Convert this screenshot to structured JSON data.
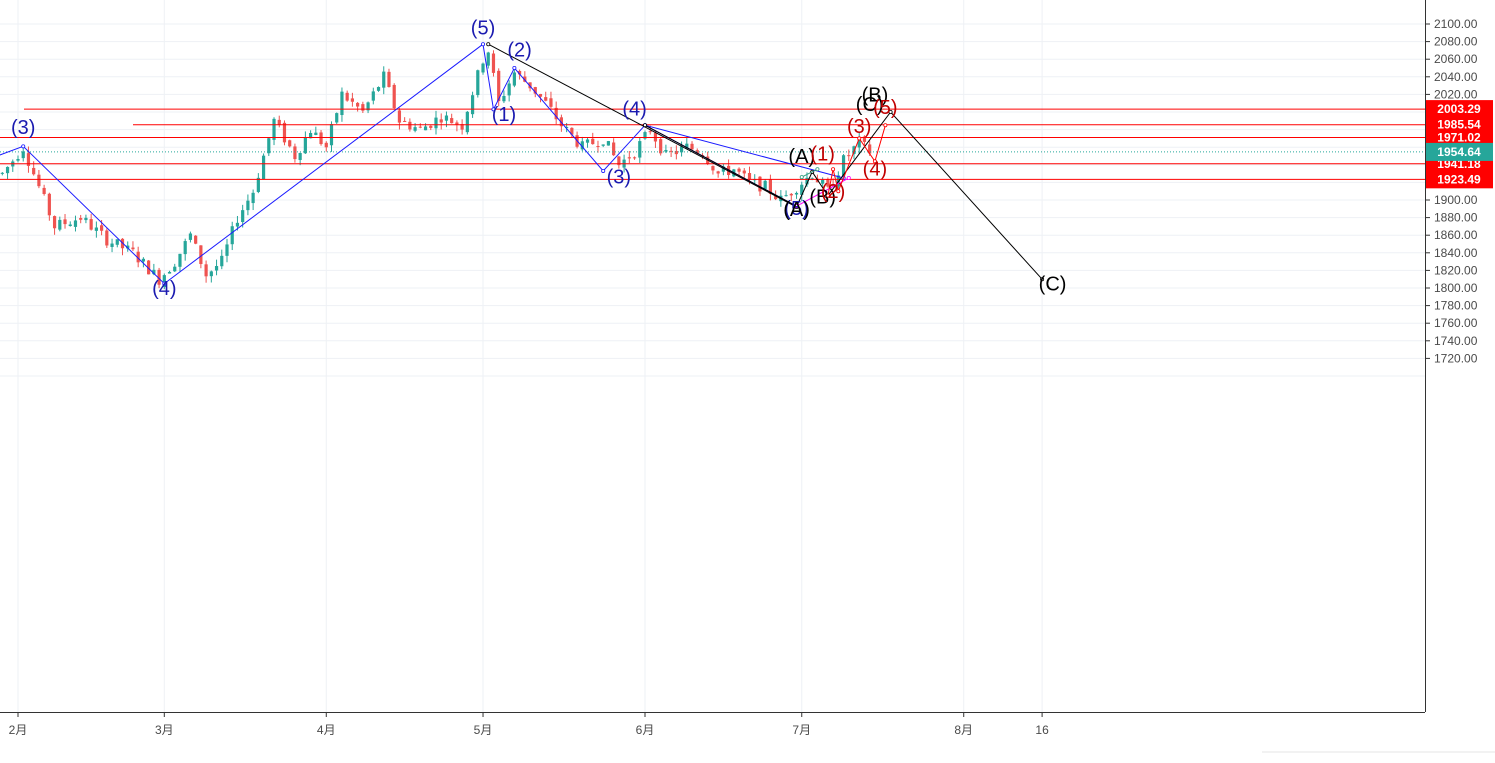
{
  "chart_data": {
    "type": "candlestick",
    "y_axis": {
      "ticks": [
        "2100.00",
        "2080.00",
        "2060.00",
        "2040.00",
        "2020.00",
        "1900.00",
        "1880.00",
        "1860.00",
        "1840.00",
        "1820.00",
        "1800.00",
        "1780.00",
        "1760.00",
        "1740.00",
        "1720.00"
      ],
      "tick_values": [
        2100,
        2080,
        2060,
        2040,
        2020,
        1900,
        1880,
        1860,
        1840,
        1820,
        1800,
        1780,
        1760,
        1740,
        1720
      ],
      "range": [
        1710,
        2112
      ],
      "position": "right"
    },
    "x_axis": {
      "ticks": [
        {
          "label": "2月",
          "t": 0
        },
        {
          "label": "3月",
          "t": 28
        },
        {
          "label": "4月",
          "t": 59
        },
        {
          "label": "5月",
          "t": 89
        },
        {
          "label": "6月",
          "t": 120
        },
        {
          "label": "7月",
          "t": 150
        },
        {
          "label": "8月",
          "t": 181
        },
        {
          "label": "16",
          "t": 196
        }
      ]
    },
    "grid": true,
    "candle_colors": {
      "up": "#26a69a",
      "down": "#ef5350"
    },
    "horizontal_levels": [
      {
        "price": 2003.29,
        "label": "2003.29",
        "color": "#ff0000"
      },
      {
        "price": 1985.54,
        "label": "1985.54",
        "color": "#ff0000"
      },
      {
        "price": 1971.02,
        "label": "1971.02",
        "color": "#ff0000"
      },
      {
        "price": 1941.18,
        "label": "1941.18",
        "color": "#ff0000"
      },
      {
        "price": 1923.49,
        "label": "1923.49",
        "color": "#ff0000"
      }
    ],
    "last_price": {
      "price": 1954.64,
      "label": "1954.64",
      "color": "#26a69a"
    },
    "price_path": [
      {
        "t": -3,
        "price": 1930
      },
      {
        "t": 1,
        "price": 1960
      },
      {
        "t": 4,
        "price": 1915
      },
      {
        "t": 7,
        "price": 1870
      },
      {
        "t": 12,
        "price": 1880
      },
      {
        "t": 17,
        "price": 1855
      },
      {
        "t": 22,
        "price": 1840
      },
      {
        "t": 27,
        "price": 1810
      },
      {
        "t": 30,
        "price": 1830
      },
      {
        "t": 33,
        "price": 1860
      },
      {
        "t": 36,
        "price": 1815
      },
      {
        "t": 39,
        "price": 1830
      },
      {
        "t": 42,
        "price": 1880
      },
      {
        "t": 45,
        "price": 1910
      },
      {
        "t": 49,
        "price": 1990
      },
      {
        "t": 53,
        "price": 1950
      },
      {
        "t": 56,
        "price": 1980
      },
      {
        "t": 59,
        "price": 1960
      },
      {
        "t": 62,
        "price": 2020
      },
      {
        "t": 66,
        "price": 2000
      },
      {
        "t": 70,
        "price": 2040
      },
      {
        "t": 73,
        "price": 1990
      },
      {
        "t": 77,
        "price": 1980
      },
      {
        "t": 81,
        "price": 1995
      },
      {
        "t": 85,
        "price": 1985
      },
      {
        "t": 89,
        "price": 2060
      },
      {
        "t": 90,
        "price": 2070
      },
      {
        "t": 92,
        "price": 2010
      },
      {
        "t": 95,
        "price": 2045
      },
      {
        "t": 98,
        "price": 2030
      },
      {
        "t": 101,
        "price": 2010
      },
      {
        "t": 104,
        "price": 1985
      },
      {
        "t": 108,
        "price": 1960
      },
      {
        "t": 112,
        "price": 1970
      },
      {
        "t": 115,
        "price": 1940
      },
      {
        "t": 118,
        "price": 1955
      },
      {
        "t": 121,
        "price": 1980
      },
      {
        "t": 124,
        "price": 1950
      },
      {
        "t": 128,
        "price": 1960
      },
      {
        "t": 131,
        "price": 1955
      },
      {
        "t": 134,
        "price": 1930
      },
      {
        "t": 137,
        "price": 1935
      },
      {
        "t": 140,
        "price": 1920
      },
      {
        "t": 143,
        "price": 1915
      },
      {
        "t": 146,
        "price": 1900
      },
      {
        "t": 149,
        "price": 1915
      },
      {
        "t": 152,
        "price": 1930
      },
      {
        "t": 155,
        "price": 1910
      },
      {
        "t": 158,
        "price": 1945
      },
      {
        "t": 161,
        "price": 1965
      },
      {
        "t": 163,
        "price": 1955
      }
    ],
    "wave_lines": [
      {
        "color": "#1a1aff",
        "points": [
          [
            -4,
            1950
          ],
          [
            1,
            1961
          ],
          [
            28,
            1805
          ],
          [
            89,
            2077
          ],
          [
            91,
            2003
          ],
          [
            95,
            2050
          ],
          [
            112,
            1933
          ],
          [
            120,
            1985
          ],
          [
            149,
            1893
          ]
        ]
      },
      {
        "color": "#1a1aff",
        "points": [
          [
            120,
            1985
          ],
          [
            158,
            1925
          ]
        ]
      },
      {
        "color": "#000000",
        "points": [
          [
            90,
            2077
          ],
          [
            149,
            1892
          ],
          [
            152,
            1932
          ],
          [
            155,
            1905
          ],
          [
            167,
            2000
          ],
          [
            196,
            1810
          ]
        ]
      },
      {
        "color": "#000000",
        "points": [
          [
            120,
            1985
          ],
          [
            149,
            1893
          ]
        ]
      },
      {
        "color": "#ff00ff",
        "points": [
          [
            149,
            1893
          ],
          [
            159,
            1925
          ]
        ]
      },
      {
        "color": "#ff0000",
        "points": [
          [
            155,
            1905
          ],
          [
            156,
            1935
          ],
          [
            157,
            1910
          ],
          [
            161,
            1970
          ],
          [
            164,
            1944
          ],
          [
            166,
            1985
          ]
        ]
      },
      {
        "color": "#2e9e7e",
        "points": [
          [
            150,
            1926
          ],
          [
            153,
            1935
          ]
        ]
      }
    ],
    "wave_labels": [
      {
        "text": "(3)",
        "t": 1,
        "price": 1975,
        "color": "#1a1ab0"
      },
      {
        "text": "(4)",
        "t": 28,
        "price": 1792,
        "color": "#1a1ab0"
      },
      {
        "text": "(5)",
        "t": 89,
        "price": 2088,
        "color": "#1a1ab0"
      },
      {
        "text": "(2)",
        "t": 96,
        "price": 2063,
        "color": "#1a1ab0"
      },
      {
        "text": "(1)",
        "t": 93,
        "price": 1990,
        "color": "#1a1ab0"
      },
      {
        "text": "(4)",
        "t": 118,
        "price": 1996,
        "color": "#1a1ab0"
      },
      {
        "text": "(3)",
        "t": 115,
        "price": 1919,
        "color": "#1a1ab0"
      },
      {
        "text": "(5)",
        "t": 149,
        "price": 1883,
        "color": "#1a1ab0"
      },
      {
        "text": "(A)",
        "t": 149,
        "price": 1882,
        "color": "#000000"
      },
      {
        "text": "(A)",
        "t": 150,
        "price": 1942,
        "color": "#000000"
      },
      {
        "text": "(B)",
        "t": 154,
        "price": 1896,
        "color": "#000000"
      },
      {
        "text": "(C)",
        "t": 163,
        "price": 2001,
        "color": "#000000"
      },
      {
        "text": "(B)",
        "t": 164,
        "price": 2012,
        "color": "#000000"
      },
      {
        "text": "(C)",
        "t": 198,
        "price": 1797,
        "color": "#000000"
      },
      {
        "text": "(1)",
        "t": 154,
        "price": 1945,
        "color": "#c00000"
      },
      {
        "text": "(2)",
        "t": 156,
        "price": 1902,
        "color": "#c00000"
      },
      {
        "text": "(3)",
        "t": 161,
        "price": 1976,
        "color": "#c00000"
      },
      {
        "text": "(4)",
        "t": 164,
        "price": 1928,
        "color": "#c00000"
      },
      {
        "text": "(5)",
        "t": 166,
        "price": 1998,
        "color": "#c00000"
      }
    ]
  }
}
